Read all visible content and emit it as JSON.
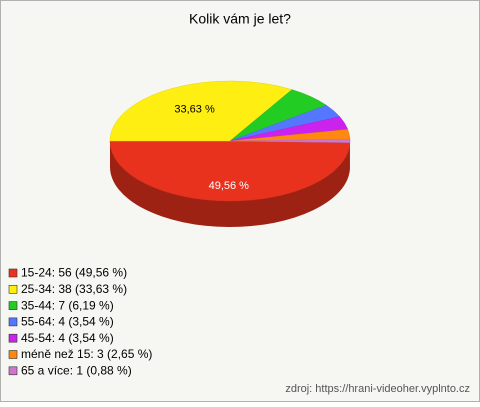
{
  "chart_data": {
    "type": "pie",
    "title": "Kolik vám je let?",
    "categories": [
      "15-24",
      "25-34",
      "35-44",
      "55-64",
      "45-54",
      "méně než 15",
      "65 a více"
    ],
    "values": [
      49.56,
      33.63,
      6.19,
      3.54,
      3.54,
      2.65,
      0.88
    ],
    "value_labels": [
      "49,56 %",
      "33,63 %",
      null,
      null,
      null,
      null,
      null
    ],
    "legend_labels": [
      "15-24: 56 (49,56 %)",
      "25-34: 38 (33,63 %)",
      "35-44: 7 (6,19 %)",
      "55-64: 4 (3,54 %)",
      "45-54: 4 (3,54 %)",
      "méně než 15: 3 (2,65 %)",
      "65 a více: 1 (0,88 %)"
    ],
    "colors": [
      "#e8321e",
      "#ffee11",
      "#22cc22",
      "#5577ff",
      "#cc22ee",
      "#ff8811",
      "#cc77cc"
    ],
    "source": "zdroj: https://hrani-videoher.vyplnto.cz"
  }
}
